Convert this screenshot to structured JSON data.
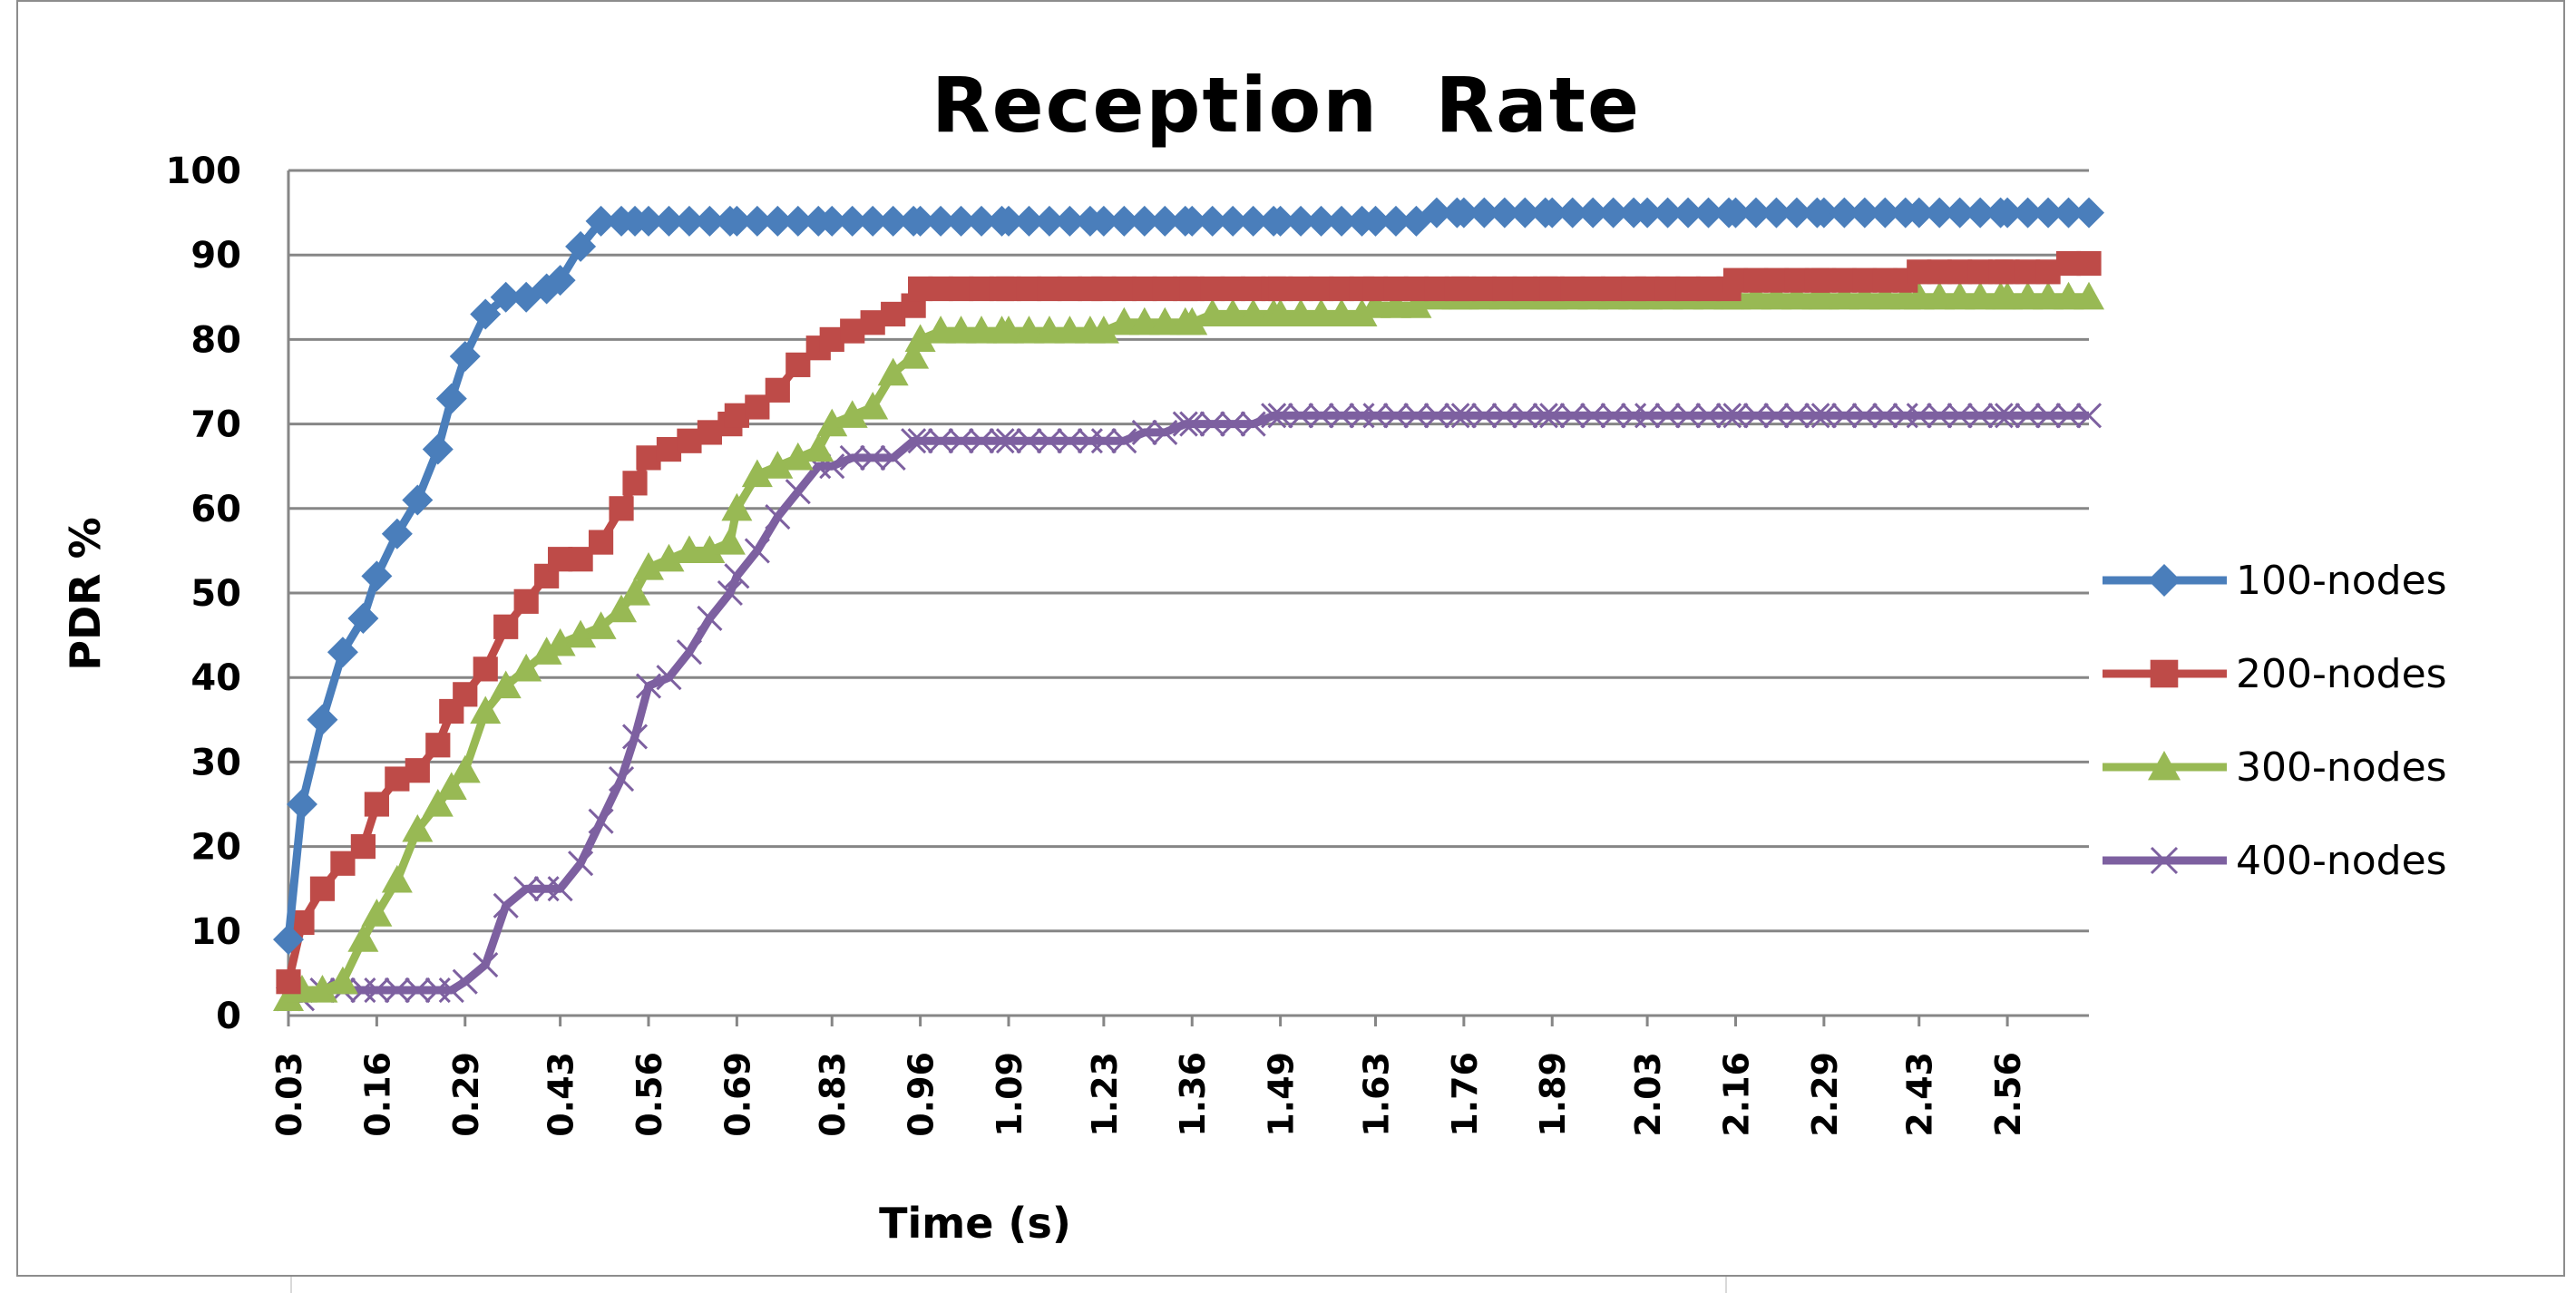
{
  "chart_data": {
    "type": "line",
    "title": "Reception  Rate",
    "xlabel": "Time (s)",
    "ylabel": "PDR %",
    "ylim": [
      0,
      100
    ],
    "yticks": [
      "0",
      "10",
      "20",
      "30",
      "40",
      "50",
      "60",
      "70",
      "80",
      "90",
      "100"
    ],
    "xticks": [
      "0.03",
      "0.16",
      "0.29",
      "0.43",
      "0.56",
      "0.69",
      "0.83",
      "0.96",
      "1.09",
      "1.23",
      "1.36",
      "1.49",
      "1.63",
      "1.76",
      "1.89",
      "2.03",
      "2.16",
      "2.29",
      "2.43",
      "2.56"
    ],
    "grid": "horizontal",
    "legend": "right",
    "x": [
      0.03,
      0.05,
      0.08,
      0.11,
      0.14,
      0.16,
      0.19,
      0.22,
      0.25,
      0.27,
      0.29,
      0.32,
      0.35,
      0.38,
      0.41,
      0.43,
      0.46,
      0.49,
      0.52,
      0.54,
      0.56,
      0.59,
      0.62,
      0.65,
      0.68,
      0.69,
      0.72,
      0.75,
      0.78,
      0.81,
      0.83,
      0.86,
      0.89,
      0.92,
      0.95,
      0.96,
      0.99,
      1.02,
      1.05,
      1.08,
      1.09,
      1.12,
      1.15,
      1.18,
      1.21,
      1.23,
      1.26,
      1.29,
      1.32,
      1.35,
      1.36,
      1.39,
      1.42,
      1.45,
      1.48,
      1.49,
      1.52,
      1.55,
      1.58,
      1.61,
      1.63,
      1.66,
      1.69,
      1.72,
      1.75,
      1.76,
      1.79,
      1.82,
      1.85,
      1.88,
      1.89,
      1.92,
      1.95,
      1.98,
      2.01,
      2.03,
      2.06,
      2.09,
      2.12,
      2.15,
      2.16,
      2.19,
      2.22,
      2.25,
      2.28,
      2.29,
      2.32,
      2.35,
      2.38,
      2.41,
      2.43,
      2.46,
      2.49,
      2.52,
      2.55,
      2.56,
      2.59,
      2.62,
      2.65,
      2.68
    ],
    "series": [
      {
        "name": "100-nodes",
        "color": "#4a7ebb",
        "marker": "diamond",
        "values": [
          9,
          25,
          35,
          43,
          47,
          52,
          57,
          61,
          67,
          73,
          78,
          83,
          85,
          85,
          86,
          87,
          91,
          94,
          94,
          94,
          94,
          94,
          94,
          94,
          94,
          94,
          94,
          94,
          94,
          94,
          94,
          94,
          94,
          94,
          94,
          94,
          94,
          94,
          94,
          94,
          94,
          94,
          94,
          94,
          94,
          94,
          94,
          94,
          94,
          94,
          94,
          94,
          94,
          94,
          94,
          94,
          94,
          94,
          94,
          94,
          94,
          94,
          94,
          95,
          95,
          95,
          95,
          95,
          95,
          95,
          95,
          95,
          95,
          95,
          95,
          95,
          95,
          95,
          95,
          95,
          95,
          95,
          95,
          95,
          95,
          95,
          95,
          95,
          95,
          95,
          95,
          95,
          95,
          95,
          95,
          95,
          95,
          95,
          95,
          95
        ]
      },
      {
        "name": "200-nodes",
        "color": "#be4b48",
        "marker": "square",
        "values": [
          4,
          11,
          15,
          18,
          20,
          25,
          28,
          29,
          32,
          36,
          38,
          41,
          46,
          49,
          52,
          54,
          54,
          56,
          60,
          63,
          66,
          67,
          68,
          69,
          70,
          71,
          72,
          74,
          77,
          79,
          80,
          81,
          82,
          83,
          84,
          86,
          86,
          86,
          86,
          86,
          86,
          86,
          86,
          86,
          86,
          86,
          86,
          86,
          86,
          86,
          86,
          86,
          86,
          86,
          86,
          86,
          86,
          86,
          86,
          86,
          86,
          86,
          86,
          86,
          86,
          86,
          86,
          86,
          86,
          86,
          86,
          86,
          86,
          86,
          86,
          86,
          86,
          86,
          86,
          86,
          87,
          87,
          87,
          87,
          87,
          87,
          87,
          87,
          87,
          87,
          88,
          88,
          88,
          88,
          88,
          88,
          88,
          88,
          89,
          89
        ]
      },
      {
        "name": "300-nodes",
        "color": "#98b954",
        "marker": "triangle",
        "values": [
          2,
          3,
          3,
          4,
          9,
          12,
          16,
          22,
          25,
          27,
          29,
          36,
          39,
          41,
          43,
          44,
          45,
          46,
          48,
          50,
          53,
          54,
          55,
          55,
          56,
          60,
          64,
          65,
          66,
          67,
          70,
          71,
          72,
          76,
          78,
          80,
          81,
          81,
          81,
          81,
          81,
          81,
          81,
          81,
          81,
          81,
          82,
          82,
          82,
          82,
          82,
          83,
          83,
          83,
          83,
          83,
          83,
          83,
          83,
          83,
          84,
          84,
          84,
          85,
          85,
          85,
          85,
          85,
          85,
          85,
          85,
          85,
          85,
          85,
          85,
          85,
          85,
          85,
          85,
          85,
          85,
          85,
          85,
          85,
          85,
          85,
          85,
          85,
          85,
          85,
          85,
          85,
          85,
          85,
          85,
          85,
          85,
          85,
          85,
          85
        ]
      },
      {
        "name": "400-nodes",
        "color": "#7d60a0",
        "marker": "x",
        "values": [
          2,
          2,
          3,
          3,
          3,
          3,
          3,
          3,
          3,
          3,
          4,
          6,
          13,
          15,
          15,
          15,
          18,
          23,
          28,
          33,
          39,
          40,
          43,
          47,
          50,
          52,
          55,
          59,
          62,
          65,
          65,
          66,
          66,
          66,
          68,
          68,
          68,
          68,
          68,
          68,
          68,
          68,
          68,
          68,
          68,
          68,
          68,
          69,
          69,
          70,
          70,
          70,
          70,
          70,
          71,
          71,
          71,
          71,
          71,
          71,
          71,
          71,
          71,
          71,
          71,
          71,
          71,
          71,
          71,
          71,
          71,
          71,
          71,
          71,
          71,
          71,
          71,
          71,
          71,
          71,
          71,
          71,
          71,
          71,
          71,
          71,
          71,
          71,
          71,
          71,
          71,
          71,
          71,
          71,
          71,
          71,
          71,
          71,
          71,
          71
        ]
      }
    ]
  },
  "colors": {
    "gridline": "#868686",
    "axis": "#868686",
    "frame": "#8c8c8c"
  }
}
